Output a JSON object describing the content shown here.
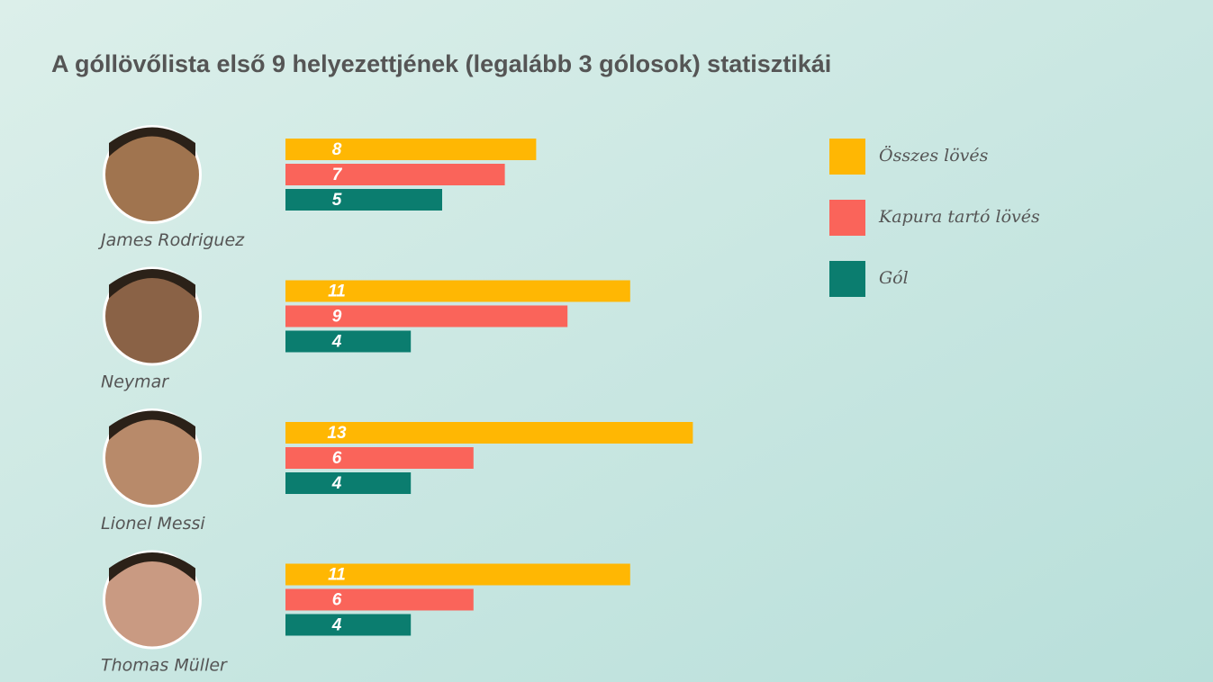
{
  "chart_data": {
    "type": "bar",
    "orientation": "horizontal",
    "title": "A góllövőlista első 9 helyezettjének (legalább 3 gólosok) statisztikái",
    "categories": [
      "James Rodriguez",
      "Neymar",
      "Lionel Messi",
      "Thomas Müller"
    ],
    "series": [
      {
        "name": "Összes lövés",
        "color": "#ffb703",
        "values": [
          8,
          11,
          13,
          11
        ]
      },
      {
        "name": "Kapura tartó lövés",
        "color": "#fa645a",
        "values": [
          7,
          9,
          6,
          6
        ]
      },
      {
        "name": "Gól",
        "color": "#0b7d6f",
        "values": [
          5,
          4,
          4,
          4
        ]
      }
    ],
    "legend": "right"
  }
}
